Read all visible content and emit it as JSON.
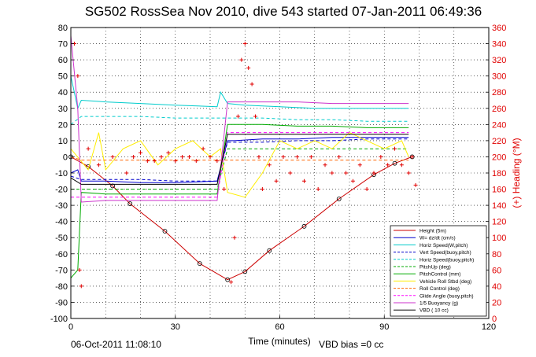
{
  "chart_data": {
    "type": "line",
    "title": "SG502 RossSea Nov 2010, dive 543 started 07-Jan-2011 06:49:36",
    "xlabel": "Time (minutes)",
    "ylabel": "",
    "y2label": "(+) Heading (°M)",
    "xlim": [
      0,
      120
    ],
    "ylim": [
      -100,
      80
    ],
    "y2lim": [
      0,
      360
    ],
    "x_ticks": [
      "0",
      "30",
      "60",
      "90",
      "120"
    ],
    "y_ticks": [
      "80",
      "70",
      "60",
      "50",
      "40",
      "30",
      "20",
      "10",
      "0",
      "-10",
      "-20",
      "-30",
      "-40",
      "-50",
      "-60",
      "-70",
      "-80",
      "-90",
      "-100"
    ],
    "y2_ticks": [
      "360",
      "340",
      "320",
      "300",
      "280",
      "260",
      "240",
      "220",
      "200",
      "180",
      "160",
      "140",
      "120",
      "100",
      "80",
      "60",
      "40",
      "20",
      "0"
    ],
    "grid": true,
    "legend_position": "bottom-right",
    "footer_left": "06-Oct-2011 11:08:10",
    "footer_right": "VBD bias =0 cc",
    "series": [
      {
        "name": "Height (5m)",
        "color": "#cc0000",
        "style": "solid",
        "x": [
          0,
          5,
          12,
          17,
          27,
          37,
          45,
          50,
          57,
          67,
          77,
          87,
          93,
          98
        ],
        "y": [
          0,
          -6,
          -18,
          -29,
          -46,
          -66,
          -76,
          -71,
          -58,
          -43,
          -26,
          -11,
          -4,
          0
        ]
      },
      {
        "name": "W= dz/dt (cm/s)",
        "color": "#0000cc",
        "style": "solid",
        "x": [
          0,
          2,
          3,
          10,
          20,
          30,
          42,
          45,
          47,
          55,
          65,
          75,
          85,
          95,
          97
        ],
        "y": [
          -10,
          -8,
          -15,
          -15,
          -16,
          -16,
          -15,
          10,
          10,
          11,
          11,
          12,
          12,
          12,
          12
        ]
      },
      {
        "name": "Horiz Speed(W,pitch)",
        "color": "#00cccc",
        "style": "solid",
        "x": [
          0,
          2,
          3,
          10,
          20,
          30,
          42,
          43,
          45,
          50,
          60,
          70,
          80,
          90,
          97
        ],
        "y": [
          50,
          30,
          35,
          34,
          33,
          32,
          31,
          40,
          33,
          32,
          31,
          30,
          30,
          30,
          30
        ]
      },
      {
        "name": "Vert Speed(buoy,pitch)",
        "color": "#0000cc",
        "style": "dashed",
        "x": [
          0,
          3,
          10,
          20,
          30,
          42,
          45,
          55,
          65,
          75,
          85,
          95,
          97
        ],
        "y": [
          -12,
          -14,
          -14,
          -14,
          -15,
          -15,
          9,
          9,
          10,
          10,
          11,
          11,
          11
        ]
      },
      {
        "name": "Horiz Speed(buoy,pitch)",
        "color": "#00cccc",
        "style": "dashed",
        "x": [
          0,
          3,
          10,
          20,
          30,
          42,
          45,
          55,
          65,
          75,
          85,
          95,
          97
        ],
        "y": [
          20,
          25,
          25,
          25,
          24,
          24,
          24,
          24,
          23,
          23,
          22,
          22,
          22
        ]
      },
      {
        "name": "PitchUp (deg)",
        "color": "#00aa00",
        "style": "dashed",
        "x": [
          0,
          3,
          10,
          20,
          30,
          42,
          45,
          55,
          65,
          75,
          85,
          95,
          97
        ],
        "y": [
          -20,
          -20,
          -20,
          -20,
          -20,
          -20,
          5,
          5,
          5,
          5,
          5,
          5,
          5
        ]
      },
      {
        "name": "PitchControl (mm)",
        "color": "#00aa00",
        "style": "solid",
        "x": [
          0,
          2,
          3,
          10,
          20,
          30,
          42,
          45,
          55,
          65,
          75,
          85,
          95,
          97
        ],
        "y": [
          -75,
          -70,
          -22,
          -23,
          -23,
          -23,
          -23,
          20,
          20,
          19,
          19,
          18,
          18,
          18
        ]
      },
      {
        "name": "Vehicle Roll Stbd (deg)",
        "color": "#ffee00",
        "style": "solid",
        "x": [
          0,
          5,
          8,
          10,
          15,
          20,
          25,
          30,
          35,
          40,
          43,
          45,
          50,
          55,
          60,
          65,
          70,
          75,
          80,
          85,
          90,
          95,
          97
        ],
        "y": [
          5,
          -8,
          15,
          -8,
          5,
          10,
          -5,
          5,
          10,
          0,
          5,
          -22,
          -25,
          -10,
          10,
          5,
          10,
          5,
          15,
          10,
          5,
          10,
          0
        ]
      },
      {
        "name": "Roll Control (deg)",
        "color": "#ff6600",
        "style": "dashed",
        "x": [
          0,
          3,
          10,
          20,
          30,
          42,
          45,
          55,
          65,
          75,
          85,
          95,
          97
        ],
        "y": [
          0,
          -2,
          -2,
          -2,
          -2,
          -2,
          -2,
          -2,
          -2,
          -2,
          -2,
          -2,
          -2
        ]
      },
      {
        "name": "Glide Angle (buoy,pitch)",
        "color": "#ff00ff",
        "style": "dashed",
        "x": [
          0,
          3,
          10,
          20,
          30,
          42,
          45,
          55,
          65,
          75,
          85,
          95,
          97
        ],
        "y": [
          -25,
          -25,
          -25,
          -25,
          -25,
          -25,
          15,
          15,
          15,
          15,
          15,
          15,
          15
        ]
      },
      {
        "name": "1/5 Buoyancy (g)",
        "color": "#cc33cc",
        "style": "solid",
        "x": [
          0,
          2,
          3,
          10,
          20,
          30,
          40,
          42,
          45,
          55,
          65,
          75,
          85,
          95,
          97
        ],
        "y": [
          75,
          30,
          -28,
          -27,
          -27,
          -27,
          -27,
          -27,
          34,
          34,
          34,
          33,
          33,
          33,
          33
        ]
      },
      {
        "name": "VBD ( 10 cc)",
        "color": "#000000",
        "style": "solid",
        "x": [
          0,
          3,
          10,
          20,
          30,
          42,
          45,
          55,
          65,
          75,
          85,
          95,
          97
        ],
        "y": [
          -13,
          -17,
          -17,
          -17,
          -17,
          -17,
          14,
          14,
          14,
          14,
          14,
          14,
          14
        ]
      }
    ],
    "heading_series": {
      "name": "Heading",
      "color": "#e00000",
      "marker": "+",
      "x": [
        1,
        2,
        2.5,
        3,
        5,
        8,
        12,
        16,
        18,
        20,
        22,
        24,
        26,
        28,
        30,
        32,
        34,
        36,
        38,
        40,
        42,
        44,
        46,
        47,
        48,
        49,
        50,
        51,
        52,
        53,
        54,
        55,
        57,
        59,
        61,
        63,
        65,
        67,
        69,
        71,
        73,
        75,
        77,
        79,
        81,
        83,
        85,
        87,
        89,
        91,
        93,
        95,
        97,
        98,
        99
      ],
      "y": [
        340,
        300,
        60,
        40,
        210,
        190,
        200,
        180,
        200,
        205,
        195,
        195,
        200,
        205,
        195,
        200,
        200,
        195,
        210,
        200,
        195,
        160,
        45,
        100,
        250,
        320,
        340,
        310,
        290,
        250,
        200,
        160,
        190,
        170,
        200,
        180,
        200,
        170,
        200,
        160,
        190,
        180,
        200,
        180,
        170,
        190,
        160,
        180,
        200,
        190,
        210,
        190,
        180,
        200,
        165
      ]
    }
  }
}
